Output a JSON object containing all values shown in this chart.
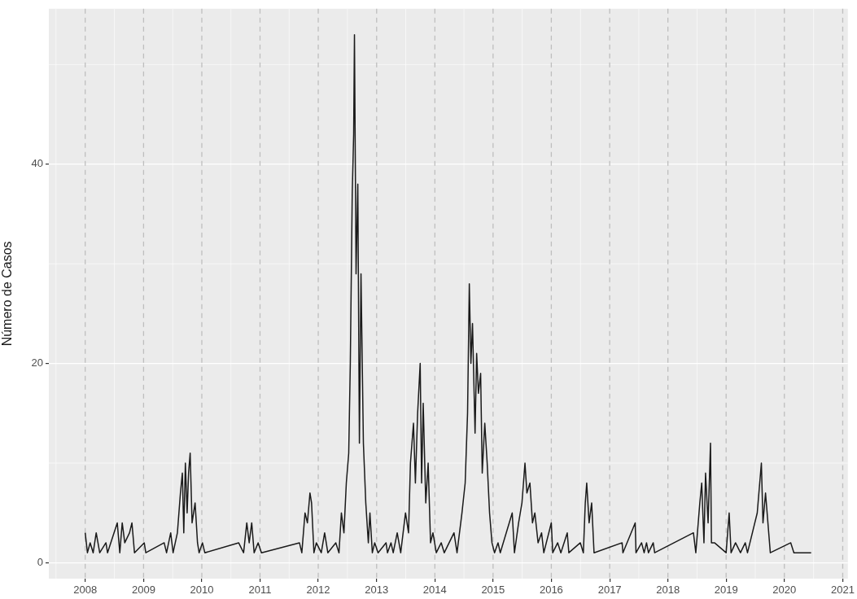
{
  "chart_data": {
    "type": "line",
    "ylabel": "Número de Casos",
    "xlim": [
      "2007-05-18",
      "2021-02-02"
    ],
    "ylim": [
      -1.6,
      55.6
    ],
    "yticks": [
      0,
      20,
      40
    ],
    "xticks": [
      "2008",
      "2009",
      "2010",
      "2011",
      "2012",
      "2013",
      "2014",
      "2015",
      "2016",
      "2017",
      "2018",
      "2019",
      "2020",
      "2021"
    ],
    "grid": true,
    "legend": false,
    "marker": "none",
    "line_style": "solid",
    "ref_lines": [
      {
        "axis": "x",
        "value": "2008",
        "color": "#bebebe",
        "line_style": "dashed"
      },
      {
        "axis": "x",
        "value": "2009",
        "color": "#bebebe",
        "line_style": "dashed"
      },
      {
        "axis": "x",
        "value": "2010",
        "color": "#bebebe",
        "line_style": "dashed"
      },
      {
        "axis": "x",
        "value": "2011",
        "color": "#bebebe",
        "line_style": "dashed"
      },
      {
        "axis": "x",
        "value": "2012",
        "color": "#bebebe",
        "line_style": "dashed"
      },
      {
        "axis": "x",
        "value": "2013",
        "color": "#bebebe",
        "line_style": "dashed"
      },
      {
        "axis": "x",
        "value": "2014",
        "color": "#bebebe",
        "line_style": "dashed"
      },
      {
        "axis": "x",
        "value": "2015",
        "color": "#bebebe",
        "line_style": "dashed"
      },
      {
        "axis": "x",
        "value": "2016",
        "color": "#bebebe",
        "line_style": "dashed"
      },
      {
        "axis": "x",
        "value": "2017",
        "color": "#bebebe",
        "line_style": "dashed"
      },
      {
        "axis": "x",
        "value": "2018",
        "color": "#bebebe",
        "line_style": "dashed"
      },
      {
        "axis": "x",
        "value": "2019",
        "color": "#bebebe",
        "line_style": "dashed"
      },
      {
        "axis": "x",
        "value": "2020",
        "color": "#bebebe",
        "line_style": "dashed"
      },
      {
        "axis": "x",
        "value": "2021",
        "color": "#bebebe",
        "line_style": "dashed"
      }
    ],
    "x": [
      "2008-01-01",
      "2008-01-15",
      "2008-02-01",
      "2008-02-20",
      "2008-03-10",
      "2008-04-01",
      "2008-05-10",
      "2008-05-20",
      "2008-07-20",
      "2008-08-05",
      "2008-08-20",
      "2008-09-05",
      "2008-10-05",
      "2008-10-20",
      "2008-11-05",
      "2009-01-05",
      "2009-01-15",
      "2009-05-10",
      "2009-05-25",
      "2009-06-20",
      "2009-07-05",
      "2009-08-01",
      "2009-08-20",
      "2009-09-01",
      "2009-09-10",
      "2009-09-20",
      "2009-10-01",
      "2009-10-10",
      "2009-10-20",
      "2009-11-01",
      "2009-11-20",
      "2009-12-05",
      "2009-12-15",
      "2010-01-05",
      "2010-01-20",
      "2010-08-20",
      "2010-09-20",
      "2010-10-10",
      "2010-10-25",
      "2010-11-10",
      "2010-11-25",
      "2010-12-20",
      "2011-01-10",
      "2011-09-05",
      "2011-09-20",
      "2011-10-10",
      "2011-10-25",
      "2011-11-10",
      "2011-11-20",
      "2011-12-05",
      "2011-12-20",
      "2012-01-20",
      "2012-02-10",
      "2012-03-01",
      "2012-04-20",
      "2012-05-10",
      "2012-05-25",
      "2012-06-10",
      "2012-06-25",
      "2012-07-10",
      "2012-07-20",
      "2012-08-01",
      "2012-08-10",
      "2012-08-15",
      "2012-08-25",
      "2012-09-05",
      "2012-09-15",
      "2012-09-25",
      "2012-10-10",
      "2012-10-25",
      "2012-11-10",
      "2012-11-20",
      "2012-12-05",
      "2012-12-20",
      "2013-01-10",
      "2013-03-01",
      "2013-03-10",
      "2013-04-01",
      "2013-04-15",
      "2013-05-10",
      "2013-06-01",
      "2013-07-01",
      "2013-07-20",
      "2013-08-01",
      "2013-08-20",
      "2013-09-01",
      "2013-09-15",
      "2013-10-01",
      "2013-10-10",
      "2013-10-20",
      "2013-11-05",
      "2013-11-20",
      "2013-12-05",
      "2013-12-20",
      "2014-01-10",
      "2014-02-10",
      "2014-03-01",
      "2014-05-01",
      "2014-05-20",
      "2014-06-20",
      "2014-07-10",
      "2014-07-25",
      "2014-08-05",
      "2014-08-15",
      "2014-08-25",
      "2014-09-10",
      "2014-09-20",
      "2014-10-01",
      "2014-10-15",
      "2014-10-25",
      "2014-11-10",
      "2014-11-25",
      "2014-12-10",
      "2014-12-25",
      "2015-01-10",
      "2015-02-01",
      "2015-02-15",
      "2015-05-01",
      "2015-05-15",
      "2015-06-10",
      "2015-07-01",
      "2015-07-20",
      "2015-08-01",
      "2015-08-20",
      "2015-09-05",
      "2015-09-20",
      "2015-10-10",
      "2015-11-01",
      "2015-11-15",
      "2016-01-01",
      "2016-01-10",
      "2016-02-10",
      "2016-03-01",
      "2016-04-10",
      "2016-04-20",
      "2016-07-01",
      "2016-07-20",
      "2016-08-01",
      "2016-08-10",
      "2016-08-25",
      "2016-09-10",
      "2016-09-25",
      "2017-03-20",
      "2017-03-25",
      "2017-06-10",
      "2017-06-15",
      "2017-07-20",
      "2017-08-05",
      "2017-08-20",
      "2017-09-01",
      "2017-10-01",
      "2017-10-10",
      "2018-06-10",
      "2018-06-25",
      "2018-07-20",
      "2018-08-01",
      "2018-08-15",
      "2018-08-25",
      "2018-09-10",
      "2018-09-25",
      "2018-10-01",
      "2018-10-20",
      "2019-01-01",
      "2019-01-20",
      "2019-02-01",
      "2019-03-01",
      "2019-04-01",
      "2019-05-01",
      "2019-05-15",
      "2019-07-15",
      "2019-08-10",
      "2019-08-20",
      "2019-09-05",
      "2019-09-20",
      "2019-10-05",
      "2020-02-10",
      "2020-03-01",
      "2020-06-17"
    ],
    "series": [
      {
        "color": "#1a1a1a",
        "values": [
          3,
          1,
          2,
          1,
          3,
          1,
          2,
          1,
          4,
          1,
          4,
          2,
          3,
          4,
          1,
          2,
          1,
          2,
          1,
          3,
          1,
          3,
          7,
          9,
          3,
          10,
          5,
          9,
          11,
          4,
          6,
          2,
          1,
          2,
          1,
          2,
          1,
          4,
          2,
          4,
          1,
          2,
          1,
          2,
          1,
          5,
          4,
          7,
          6,
          1,
          2,
          1,
          3,
          1,
          2,
          1,
          5,
          3,
          8,
          11,
          20,
          37,
          43,
          53,
          29,
          38,
          12,
          29,
          12,
          6,
          2,
          5,
          1,
          2,
          1,
          2,
          1,
          2,
          1,
          3,
          1,
          5,
          3,
          10,
          14,
          8,
          15,
          20,
          8,
          16,
          6,
          10,
          2,
          3,
          1,
          2,
          1,
          3,
          1,
          5,
          8,
          15,
          28,
          20,
          24,
          13,
          21,
          17,
          19,
          9,
          14,
          10,
          5,
          2,
          1,
          2,
          1,
          5,
          1,
          4,
          6,
          10,
          7,
          8,
          4,
          5,
          2,
          3,
          1,
          4,
          1,
          2,
          1,
          3,
          1,
          2,
          1,
          6,
          8,
          4,
          6,
          1,
          2,
          1,
          4,
          1,
          2,
          1,
          2,
          1,
          2,
          1,
          3,
          1,
          6,
          8,
          2,
          9,
          4,
          12,
          2,
          2,
          1,
          5,
          1,
          2,
          1,
          2,
          1,
          5,
          10,
          4,
          7,
          4,
          1,
          2,
          1,
          1
        ]
      }
    ]
  }
}
